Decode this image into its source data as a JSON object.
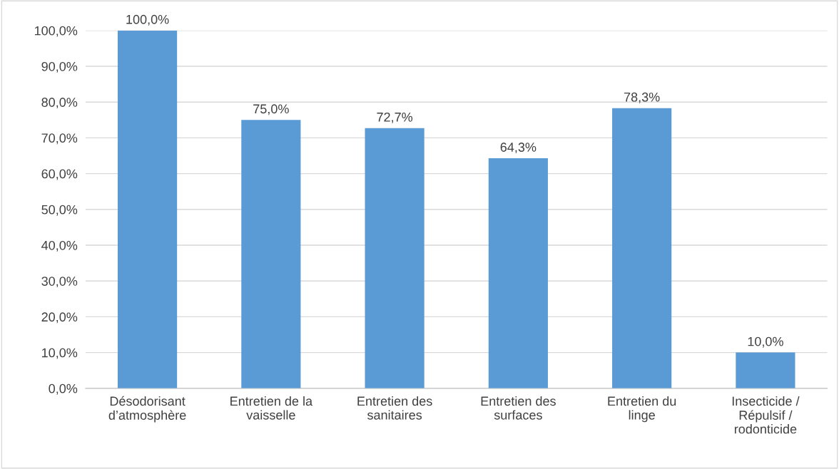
{
  "chart_data": {
    "type": "bar",
    "categories": [
      "Désodorisant\nd’atmosphère",
      "Entretien de la\nvaisselle",
      "Entretien des\nsanitaires",
      "Entretien des\nsurfaces",
      "Entretien du\nlinge",
      "Insecticide /\nRépulsif /\nrodonticide"
    ],
    "values": [
      100,
      75,
      72.7,
      64.3,
      78.3,
      10
    ],
    "value_labels": [
      "100,0%",
      "75,0%",
      "72,7%",
      "64,3%",
      "78,3%",
      "10,0%"
    ],
    "color": "#5b9bd5",
    "ylim": [
      0,
      100
    ],
    "yticks": [
      {
        "value": 0,
        "label": "0,0%"
      },
      {
        "value": 10,
        "label": "10,0%"
      },
      {
        "value": 20,
        "label": "20,0%"
      },
      {
        "value": 30,
        "label": "30,0%"
      },
      {
        "value": 40,
        "label": "40,0%"
      },
      {
        "value": 50,
        "label": "50,0%"
      },
      {
        "value": 60,
        "label": "60,0%"
      },
      {
        "value": 70,
        "label": "70,0%"
      },
      {
        "value": 80,
        "label": "80,0%"
      },
      {
        "value": 90,
        "label": "90,0%"
      },
      {
        "value": 100,
        "label": "100,0%"
      }
    ],
    "grid": "y",
    "legend": false
  }
}
